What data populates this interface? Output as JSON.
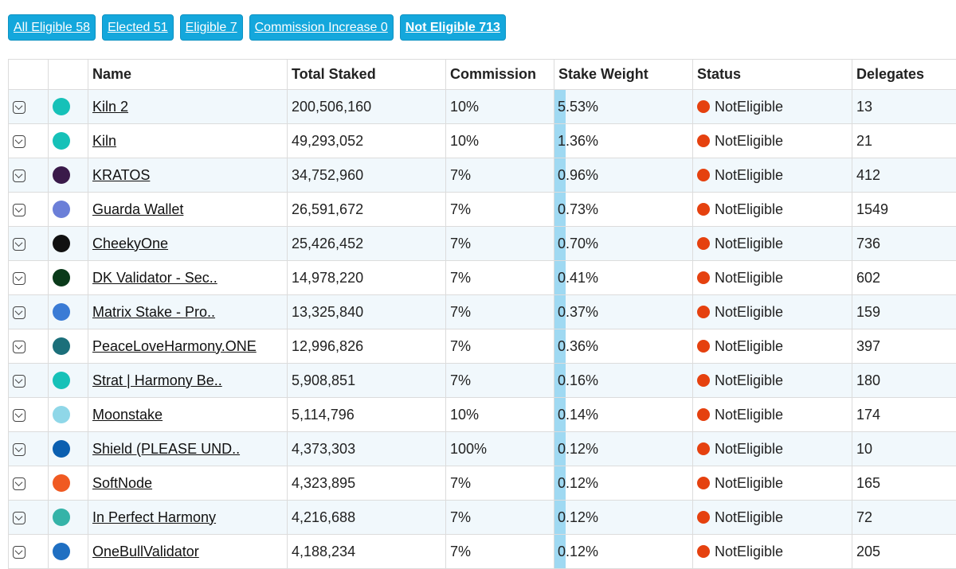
{
  "tabs": [
    "All Eligible 58",
    "Elected 51",
    "Eligible 7",
    "Commission Increase 0",
    "Not Eligible 713"
  ],
  "table": {
    "headers": [
      "Name",
      "Total Staked",
      "Commission",
      "Stake Weight",
      "Status",
      "Delegates"
    ],
    "rows": [
      [
        "Kiln 2",
        "200,506,160",
        "10%",
        "5.53%",
        "NotEligible",
        "13"
      ],
      [
        "Kiln",
        "49,293,052",
        "10%",
        "1.36%",
        "NotEligible",
        "21"
      ],
      [
        "KRATOS",
        "34,752,960",
        "7%",
        "0.96%",
        "NotEligible",
        "412"
      ],
      [
        "Guarda Wallet",
        "26,591,672",
        "7%",
        "0.73%",
        "NotEligible",
        "1549"
      ],
      [
        "CheekyOne",
        "25,426,452",
        "7%",
        "0.70%",
        "NotEligible",
        "736"
      ],
      [
        "DK Validator - Sec..",
        "14,978,220",
        "7%",
        "0.41%",
        "NotEligible",
        "602"
      ],
      [
        "Matrix Stake - Pro..",
        "13,325,840",
        "7%",
        "0.37%",
        "NotEligible",
        "159"
      ],
      [
        "PeaceLoveHarmony.ONE",
        "12,996,826",
        "7%",
        "0.36%",
        "NotEligible",
        "397"
      ],
      [
        "Strat | Harmony Be..",
        "5,908,851",
        "7%",
        "0.16%",
        "NotEligible",
        "180"
      ],
      [
        "Moonstake",
        "5,114,796",
        "10%",
        "0.14%",
        "NotEligible",
        "174"
      ],
      [
        "Shield (PLEASE UND..",
        "4,373,303",
        "100%",
        "0.12%",
        "NotEligible",
        "10"
      ],
      [
        "SoftNode",
        "4,323,895",
        "7%",
        "0.12%",
        "NotEligible",
        "165"
      ],
      [
        "In Perfect Harmony",
        "4,216,688",
        "7%",
        "0.12%",
        "NotEligible",
        "72"
      ],
      [
        "OneBullValidator",
        "4,188,234",
        "7%",
        "0.12%",
        "NotEligible",
        "205"
      ]
    ]
  }
}
